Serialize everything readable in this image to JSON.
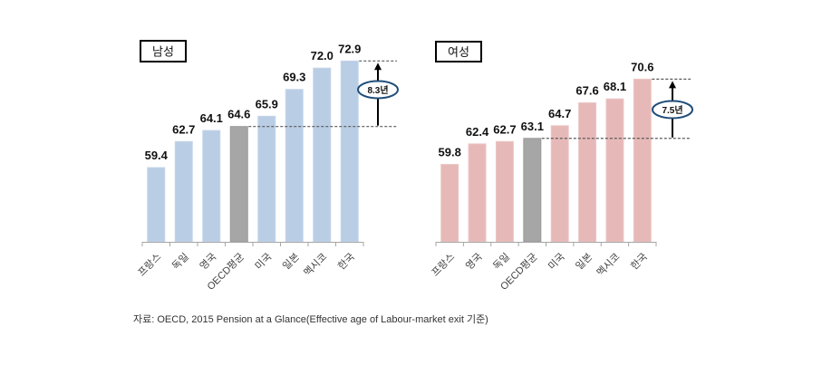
{
  "source_note": "자료: OECD, 2015 Pension at a Glance(Effective age of Labour-market exit 기준)",
  "chart_data": [
    {
      "type": "bar",
      "title": "남성",
      "categories": [
        "프랑스",
        "독일",
        "영국",
        "OECD평균",
        "미국",
        "일본",
        "멕시코",
        "한국"
      ],
      "values": [
        59.4,
        62.7,
        64.1,
        64.6,
        65.9,
        69.3,
        72.0,
        72.9
      ],
      "value_labels": [
        "59.4",
        "62.7",
        "64.1",
        "64.6",
        "65.9",
        "69.3",
        "72.0",
        "72.9"
      ],
      "highlight_category": "OECD평균",
      "bar_color": "#b9cde5",
      "highlight_color": "#a6a6a6",
      "xlabel": "",
      "ylabel": "",
      "ylim": [
        50,
        75
      ],
      "grid": false,
      "legend": "none",
      "annotation": {
        "label": "8.3년",
        "from_category": "OECD평균",
        "to_category": "한국",
        "from_value": 64.6,
        "to_value": 72.9,
        "border_color": "#1f4e79"
      }
    },
    {
      "type": "bar",
      "title": "여성",
      "categories": [
        "프랑스",
        "영국",
        "독일",
        "OECD평균",
        "미국",
        "일본",
        "멕시코",
        "한국"
      ],
      "values": [
        59.8,
        62.4,
        62.7,
        63.1,
        64.7,
        67.6,
        68.1,
        70.6
      ],
      "value_labels": [
        "59.8",
        "62.4",
        "62.7",
        "63.1",
        "64.7",
        "67.6",
        "68.1",
        "70.6"
      ],
      "highlight_category": "OECD평균",
      "bar_color": "#e6b9b8",
      "highlight_color": "#a6a6a6",
      "xlabel": "",
      "ylabel": "",
      "ylim": [
        50,
        75
      ],
      "grid": false,
      "legend": "none",
      "annotation": {
        "label": "7.5년",
        "from_category": "OECD평균",
        "to_category": "한국",
        "from_value": 63.1,
        "to_value": 70.6,
        "border_color": "#1f4e79"
      }
    }
  ]
}
